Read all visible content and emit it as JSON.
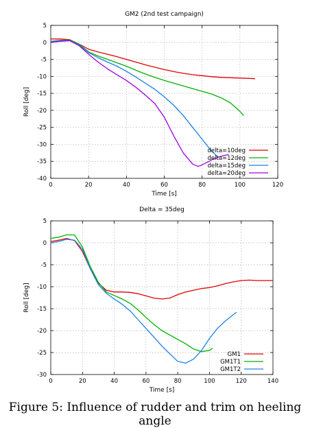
{
  "caption": "Figure 5: Influence of rudder and trim on heeling angle",
  "chart_data": [
    {
      "type": "line",
      "title": "GM2 (2nd test campaign)",
      "xlabel": "Time [s]",
      "ylabel": "Roll [deg]",
      "xlim": [
        0,
        120
      ],
      "ylim": [
        -40,
        5
      ],
      "xticks": [
        0,
        20,
        40,
        60,
        80,
        100,
        120
      ],
      "yticks": [
        5,
        0,
        -5,
        -10,
        -15,
        -20,
        -25,
        -30,
        -35,
        -40
      ],
      "grid": true,
      "legend_position": "bottom-right",
      "series": [
        {
          "name": "delta=10deg",
          "color": "#e00000",
          "x": [
            0,
            5,
            10,
            15,
            20,
            25,
            30,
            35,
            40,
            45,
            50,
            55,
            60,
            65,
            70,
            75,
            80,
            85,
            90,
            95,
            100,
            105,
            108
          ],
          "y": [
            1,
            1,
            0.8,
            -0.5,
            -2,
            -2.8,
            -3.5,
            -4.2,
            -5,
            -5.8,
            -6.6,
            -7.3,
            -8,
            -8.6,
            -9.1,
            -9.5,
            -9.8,
            -10.1,
            -10.3,
            -10.4,
            -10.5,
            -10.6,
            -10.7
          ]
        },
        {
          "name": "delta=12deg",
          "color": "#00b000",
          "x": [
            0,
            5,
            10,
            15,
            20,
            25,
            30,
            35,
            40,
            45,
            50,
            55,
            60,
            65,
            70,
            75,
            80,
            85,
            90,
            95,
            100,
            102
          ],
          "y": [
            0.3,
            0.6,
            0.7,
            -0.5,
            -2.8,
            -4,
            -5,
            -6,
            -7,
            -8.2,
            -9.3,
            -10.3,
            -11.2,
            -12,
            -12.8,
            -13.6,
            -14.4,
            -15.2,
            -16.3,
            -17.8,
            -20.3,
            -21.5
          ]
        },
        {
          "name": "delta=15deg",
          "color": "#1a7fe8",
          "x": [
            0,
            5,
            10,
            15,
            20,
            25,
            30,
            35,
            40,
            45,
            50,
            55,
            60,
            65,
            70,
            75,
            80,
            85,
            88
          ],
          "y": [
            0.2,
            0.5,
            0.6,
            -0.8,
            -3,
            -4.5,
            -5.8,
            -7,
            -8.5,
            -10.2,
            -12,
            -13.8,
            -16,
            -18.5,
            -21.5,
            -25,
            -28.5,
            -32,
            -33.5
          ]
        },
        {
          "name": "delta=20deg",
          "color": "#a000e0",
          "x": [
            0,
            5,
            10,
            15,
            20,
            25,
            30,
            35,
            40,
            45,
            50,
            55,
            60,
            65,
            70,
            75,
            78,
            82,
            86,
            90,
            94
          ],
          "y": [
            0,
            0.3,
            0.5,
            -1,
            -3.5,
            -5.8,
            -7.8,
            -9.5,
            -11.2,
            -13.2,
            -15.5,
            -18,
            -22,
            -27.5,
            -32.5,
            -35.8,
            -36.5,
            -35.5,
            -34.3,
            -33.5,
            -33
          ]
        }
      ]
    },
    {
      "type": "line",
      "title": "Delta = 35deg",
      "xlabel": "Time [s]",
      "ylabel": "Roll [deg]",
      "xlim": [
        0,
        140
      ],
      "ylim": [
        -30,
        5
      ],
      "xticks": [
        0,
        20,
        40,
        60,
        80,
        100,
        120,
        140
      ],
      "yticks": [
        5,
        0,
        -5,
        -10,
        -15,
        -20,
        -25,
        -30
      ],
      "grid": true,
      "legend_position": "bottom-right",
      "series": [
        {
          "name": "GM1",
          "color": "#e00000",
          "x": [
            0,
            5,
            10,
            15,
            20,
            25,
            30,
            35,
            40,
            45,
            50,
            55,
            60,
            65,
            70,
            75,
            80,
            85,
            90,
            95,
            100,
            105,
            110,
            115,
            120,
            125,
            130,
            140
          ],
          "y": [
            0.3,
            0.6,
            1,
            0.5,
            -2,
            -6,
            -9.2,
            -10.8,
            -11.2,
            -11.2,
            -11.3,
            -11.6,
            -12.1,
            -12.6,
            -12.8,
            -12.6,
            -11.8,
            -11.2,
            -10.8,
            -10.4,
            -10.2,
            -9.8,
            -9.3,
            -8.9,
            -8.6,
            -8.5,
            -8.6,
            -8.6
          ]
        },
        {
          "name": "GM1T1",
          "color": "#00b000",
          "x": [
            0,
            5,
            10,
            15,
            20,
            25,
            30,
            35,
            40,
            45,
            50,
            55,
            60,
            65,
            70,
            75,
            80,
            85,
            90,
            95,
            100,
            102
          ],
          "y": [
            1,
            1.3,
            1.8,
            1.8,
            -1,
            -5.5,
            -9,
            -11.2,
            -12,
            -12.8,
            -13.8,
            -15.3,
            -17,
            -18.6,
            -20,
            -21,
            -22,
            -23,
            -24.2,
            -24.8,
            -24.5,
            -24
          ]
        },
        {
          "name": "GM1T2",
          "color": "#1a7fe8",
          "x": [
            0,
            5,
            10,
            15,
            20,
            25,
            30,
            35,
            40,
            45,
            50,
            55,
            60,
            65,
            70,
            75,
            80,
            85,
            90,
            95,
            100,
            105,
            110,
            117
          ],
          "y": [
            0,
            0.3,
            0.8,
            0.6,
            -1.5,
            -6,
            -9.5,
            -11.5,
            -12.8,
            -14,
            -15.5,
            -17.5,
            -19.5,
            -21.5,
            -23.5,
            -25.3,
            -27,
            -27.4,
            -26.5,
            -24.5,
            -21.8,
            -19.5,
            -17.8,
            -15.8
          ]
        }
      ]
    }
  ]
}
